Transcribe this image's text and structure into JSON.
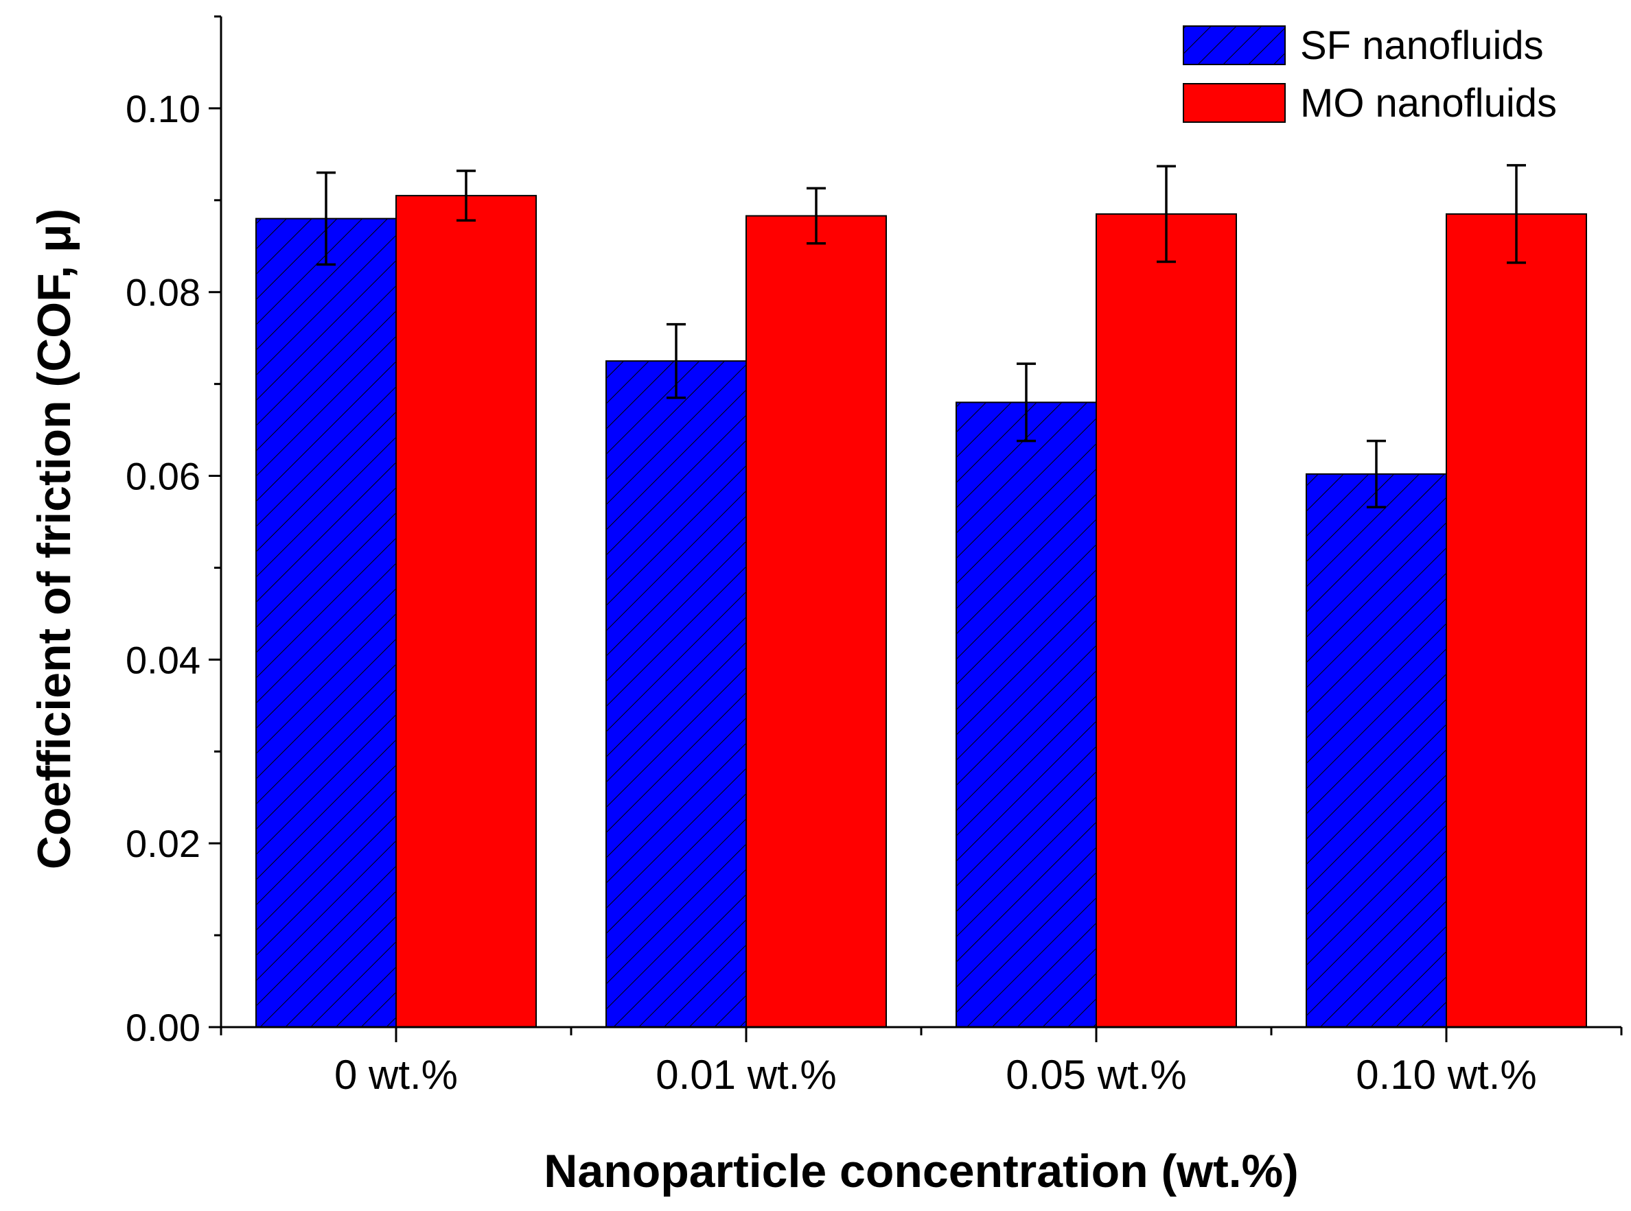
{
  "chart_data": {
    "type": "bar",
    "title": "",
    "xlabel": "Nanoparticle concentration (wt.%)",
    "ylabel": "Coefficient of friction (COF, μ)",
    "ylim": [
      0,
      0.11
    ],
    "yticks": [
      "0.00",
      "0.02",
      "0.04",
      "0.06",
      "0.08",
      "0.10"
    ],
    "ytick_values": [
      0,
      0.02,
      0.04,
      0.06,
      0.08,
      0.1
    ],
    "categories": [
      "0 wt.%",
      "0.01 wt.%",
      "0.05 wt.%",
      "0.10 wt.%"
    ],
    "grid": false,
    "legend_position": "top-right",
    "series": [
      {
        "name": "SF nanofluids",
        "color": "#0000ff",
        "pattern": "diagonal-hatch",
        "values": [
          0.088,
          0.0725,
          0.068,
          0.0602
        ],
        "errors": [
          0.005,
          0.004,
          0.0042,
          0.0036
        ]
      },
      {
        "name": "MO nanofluids",
        "color": "#ff0000",
        "pattern": "solid",
        "values": [
          0.0905,
          0.0883,
          0.0885,
          0.0885
        ],
        "errors": [
          0.0027,
          0.003,
          0.0052,
          0.0053
        ]
      }
    ]
  }
}
